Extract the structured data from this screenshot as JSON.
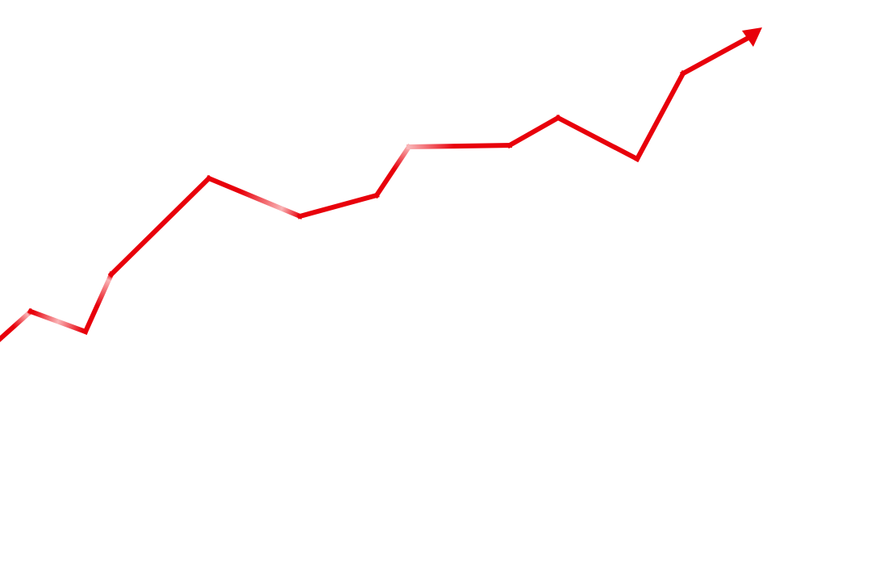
{
  "graphic": {
    "icon": "rising-trend-arrow-icon",
    "line_color": "#e8000b",
    "highlight_color": "#f9b4b6"
  }
}
